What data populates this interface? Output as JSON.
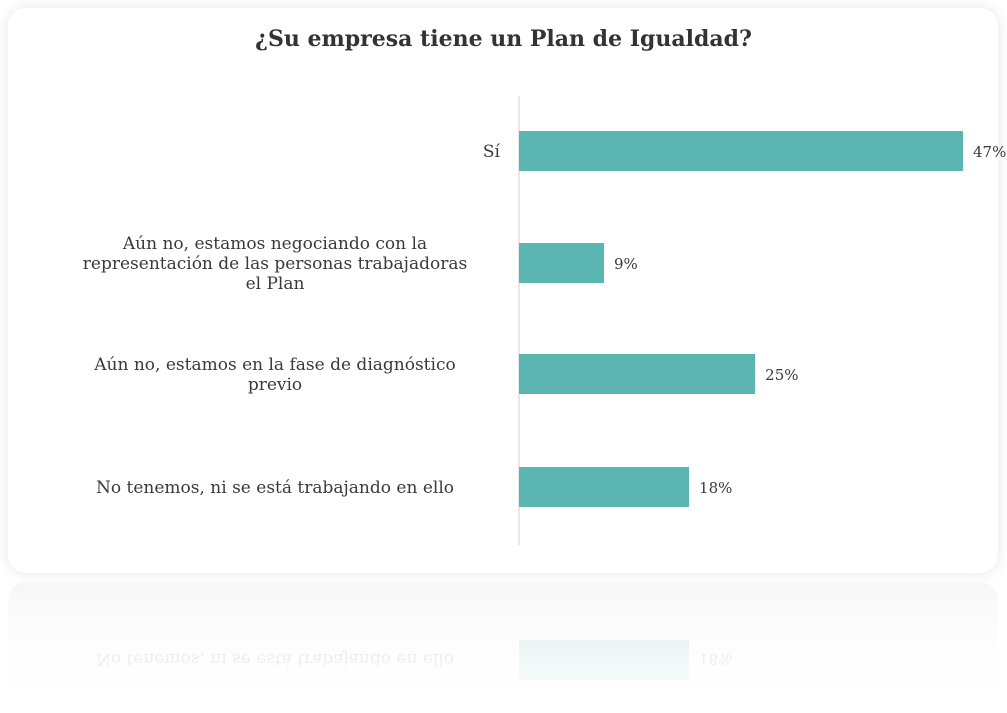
{
  "chart_data": {
    "type": "bar",
    "orientation": "horizontal",
    "title": "¿Su empresa tiene un Plan de Igualdad?",
    "categories": [
      [
        "Sí"
      ],
      [
        "Aún no, estamos negociando con la",
        "representación de las personas trabajadoras",
        "el Plan"
      ],
      [
        "Aún no, estamos en la fase de diagnóstico",
        "previo"
      ],
      [
        "No tenemos, ni se está trabajando en ello"
      ]
    ],
    "values": [
      47,
      9,
      25,
      18
    ],
    "value_labels": [
      "47%",
      "9%",
      "25%",
      "18%"
    ],
    "xlim": [
      0,
      47
    ],
    "bar_color": "#5bb5b0",
    "axis_color": "#d0d0d0",
    "grid": false,
    "reflection_label": "No tenemos, ni se está trabajando en ello",
    "reflection_value_label": "18%"
  }
}
